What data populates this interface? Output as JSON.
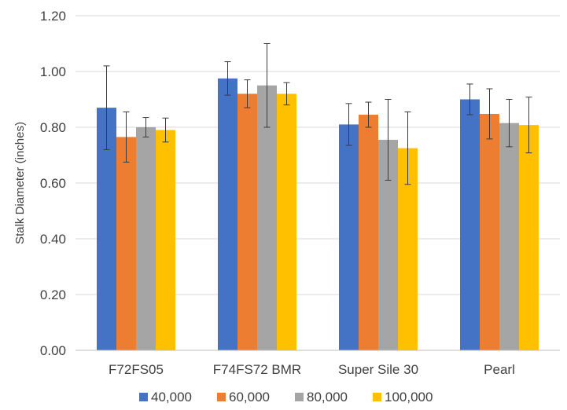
{
  "chart_data": {
    "type": "bar",
    "title": "",
    "xlabel": "",
    "ylabel": "Stalk Diameter (inches)",
    "ylim": [
      0,
      1.2
    ],
    "yticks": [
      "0.00",
      "0.20",
      "0.40",
      "0.60",
      "0.80",
      "1.00",
      "1.20"
    ],
    "grid": true,
    "legend_position": "bottom",
    "categories": [
      "F72FS05",
      "F74FS72 BMR",
      "Super Sile 30",
      "Pearl"
    ],
    "series": [
      {
        "name": "40,000",
        "color": "#4472C4",
        "values": [
          0.87,
          0.975,
          0.81,
          0.9
        ],
        "errors": [
          0.15,
          0.06,
          0.075,
          0.055
        ]
      },
      {
        "name": "60,000",
        "color": "#ED7D31",
        "values": [
          0.765,
          0.92,
          0.845,
          0.848
        ],
        "errors": [
          0.09,
          0.05,
          0.045,
          0.09
        ]
      },
      {
        "name": "80,000",
        "color": "#A5A5A5",
        "values": [
          0.8,
          0.95,
          0.755,
          0.815
        ],
        "errors": [
          0.035,
          0.15,
          0.145,
          0.085
        ]
      },
      {
        "name": "100,000",
        "color": "#FFC000",
        "values": [
          0.79,
          0.92,
          0.725,
          0.808
        ],
        "errors": [
          0.043,
          0.04,
          0.13,
          0.1
        ]
      }
    ]
  }
}
